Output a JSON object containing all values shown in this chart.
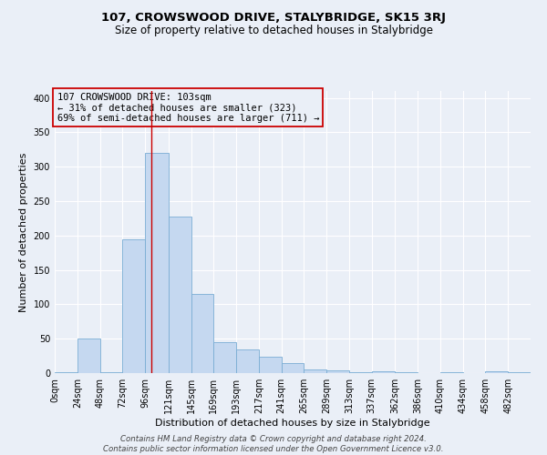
{
  "title": "107, CROWSWOOD DRIVE, STALYBRIDGE, SK15 3RJ",
  "subtitle": "Size of property relative to detached houses in Stalybridge",
  "xlabel": "Distribution of detached houses by size in Stalybridge",
  "ylabel": "Number of detached properties",
  "footer_lines": [
    "Contains HM Land Registry data © Crown copyright and database right 2024.",
    "Contains public sector information licensed under the Open Government Licence v3.0."
  ],
  "bin_labels": [
    "0sqm",
    "24sqm",
    "48sqm",
    "72sqm",
    "96sqm",
    "121sqm",
    "145sqm",
    "169sqm",
    "193sqm",
    "217sqm",
    "241sqm",
    "265sqm",
    "289sqm",
    "313sqm",
    "337sqm",
    "362sqm",
    "386sqm",
    "410sqm",
    "434sqm",
    "458sqm",
    "482sqm"
  ],
  "bin_edges": [
    0,
    24,
    48,
    72,
    96,
    121,
    145,
    169,
    193,
    217,
    241,
    265,
    289,
    313,
    337,
    362,
    386,
    410,
    434,
    458,
    482,
    506
  ],
  "bar_values": [
    1,
    50,
    1,
    195,
    320,
    228,
    115,
    45,
    35,
    24,
    14,
    5,
    4,
    1,
    3,
    1,
    0,
    1,
    0,
    2,
    1
  ],
  "bar_color": "#c5d8f0",
  "bar_edge_color": "#7aadd4",
  "bg_color": "#eaeff7",
  "grid_color": "#ffffff",
  "vline_x": 103,
  "vline_color": "#cc0000",
  "annotation_line1": "107 CROWSWOOD DRIVE: 103sqm",
  "annotation_line2": "← 31% of detached houses are smaller (323)",
  "annotation_line3": "69% of semi-detached houses are larger (711) →",
  "annotation_box_edge_color": "#cc0000",
  "ylim": [
    0,
    410
  ],
  "yticks": [
    0,
    50,
    100,
    150,
    200,
    250,
    300,
    350,
    400
  ],
  "title_fontsize": 9.5,
  "subtitle_fontsize": 8.5,
  "axis_label_fontsize": 8,
  "tick_fontsize": 7,
  "annotation_fontsize": 7.5,
  "footer_fontsize": 6.2
}
